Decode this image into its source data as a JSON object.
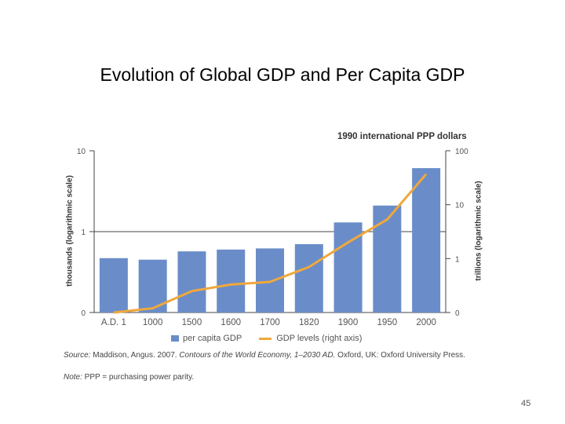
{
  "slide": {
    "title": "Evolution of Global GDP and Per Capita GDP",
    "page_number": "45"
  },
  "chart_data": {
    "type": "bar",
    "unit_header": "1990 international PPP dollars",
    "categories": [
      "A.D. 1",
      "1000",
      "1500",
      "1600",
      "1700",
      "1820",
      "1900",
      "1950",
      "2000"
    ],
    "left_axis": {
      "label": "thousands (logarithmic scale)",
      "scale": "log",
      "ticks": [
        "0",
        "1",
        "10"
      ]
    },
    "right_axis": {
      "label": "trillions (logarithmic scale)",
      "scale": "log",
      "ticks": [
        "0",
        "1",
        "10",
        "100"
      ]
    },
    "series": [
      {
        "name": "per capita GDP",
        "kind": "bar",
        "axis": "left",
        "color": "#6a8dc9",
        "values": [
          0.47,
          0.45,
          0.57,
          0.6,
          0.62,
          0.7,
          1.3,
          2.1,
          6.1
        ]
      },
      {
        "name": "GDP levels (right axis)",
        "kind": "line",
        "axis": "right",
        "color": "#f0a83c",
        "values": [
          0.1,
          0.12,
          0.25,
          0.33,
          0.37,
          0.7,
          2.0,
          5.3,
          37
        ]
      }
    ],
    "grid": false
  },
  "notes": {
    "source_prefix": "Source:",
    "source_text": " Maddison, Angus. 2007. ",
    "source_italic": "Contours of the World Economy, 1–2030 AD.",
    "source_tail": " Oxford, UK: Oxford University Press.",
    "ppp_prefix": "Note:",
    "ppp_text": " PPP = purchasing power parity."
  }
}
